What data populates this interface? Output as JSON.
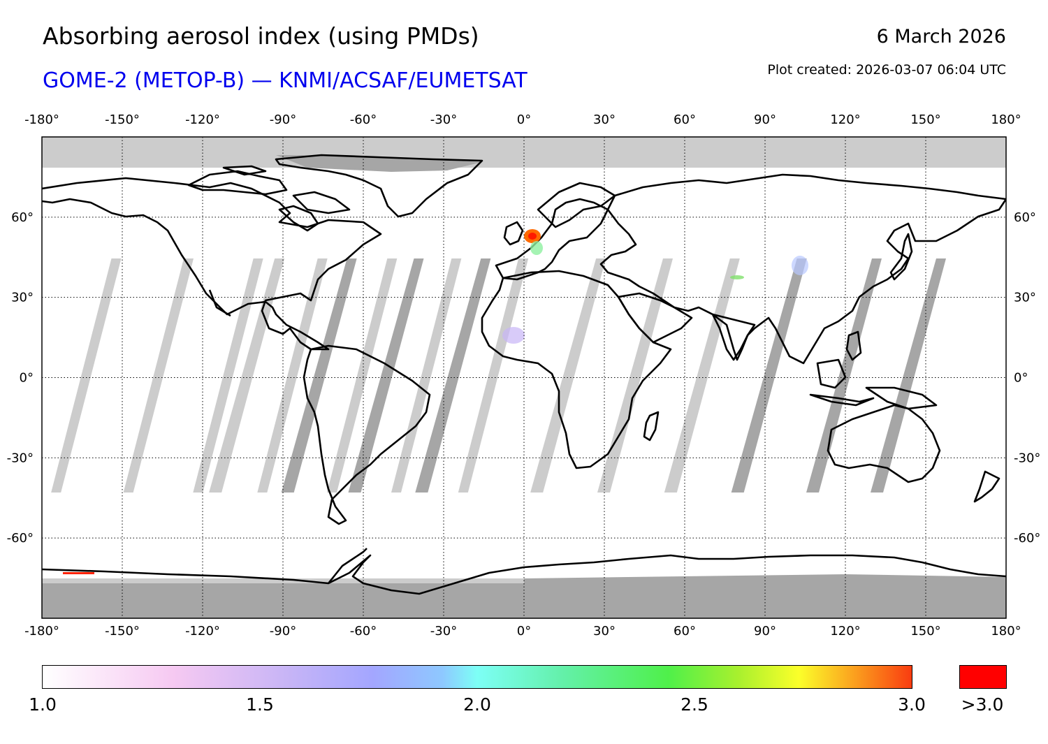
{
  "header": {
    "title": "Absorbing aerosol index (using PMDs)",
    "subtitle": "GOME-2 (METOP-B) — KNMI/ACSAF/EUMETSAT",
    "date": "6 March 2026",
    "created": "Plot created: 2026-03-07 06:04 UTC"
  },
  "map": {
    "projection": "equirectangular",
    "lon_range": [
      -180,
      180
    ],
    "lat_range": [
      -90,
      90
    ],
    "lon_ticks": [
      "-180°",
      "-150°",
      "-120°",
      "-90°",
      "-60°",
      "-30°",
      "0°",
      "30°",
      "60°",
      "90°",
      "120°",
      "150°",
      "180°"
    ],
    "lat_ticks": [
      "60°",
      "30°",
      "0°",
      "-30°",
      "-60°"
    ],
    "lat_tick_values": [
      60,
      30,
      0,
      -30,
      -60
    ],
    "lon_tick_values": [
      -180,
      -150,
      -120,
      -90,
      -60,
      -30,
      0,
      30,
      60,
      90,
      120,
      150,
      180
    ],
    "no_data_color": "#cccccc",
    "missing_color": "#a6a6a6"
  },
  "colorbar": {
    "min": 1.0,
    "max": 3.0,
    "labels": [
      "1.0",
      "1.5",
      "2.0",
      "2.5",
      "3.0"
    ],
    "label_values": [
      1.0,
      1.5,
      2.0,
      2.5,
      3.0
    ],
    "over_label": ">3.0",
    "over_color": "#ff0000"
  }
}
